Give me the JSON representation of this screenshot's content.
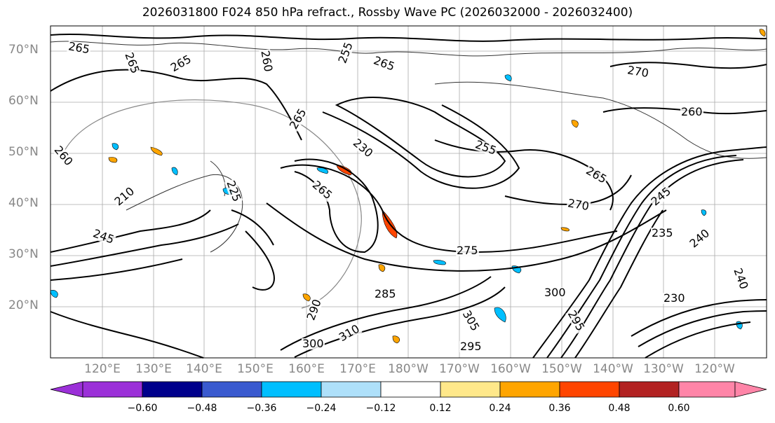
{
  "title": "2026031800 F024 850 hPa refract., Rossby Wave PC (2026032000 - 2026032400)",
  "lat_labels": [
    "70°N",
    "60°N",
    "50°N",
    "40°N",
    "30°N",
    "20°N"
  ],
  "lon_labels": [
    "120°E",
    "130°E",
    "140°E",
    "150°E",
    "160°E",
    "170°E",
    "180°W",
    "170°W",
    "160°W",
    "150°W",
    "140°W",
    "130°W",
    "120°W"
  ],
  "contour_labels": [
    "265",
    "265",
    "265",
    "260",
    "255",
    "265",
    "270",
    "260",
    "260",
    "255",
    "265",
    "265",
    "230",
    "270",
    "265",
    "275",
    "245",
    "235",
    "240",
    "225",
    "210",
    "245",
    "285",
    "300",
    "305",
    "295",
    "290",
    "310",
    "300",
    "295",
    "230",
    "240"
  ],
  "colorbar": {
    "ticks": [
      "−0.60",
      "−0.48",
      "−0.36",
      "−0.24",
      "−0.12",
      "0.12",
      "0.24",
      "0.36",
      "0.48",
      "0.60"
    ],
    "colors": [
      "#9b30d8",
      "#00008b",
      "#3a5acf",
      "#00bfff",
      "#aee0fa",
      "#ffffff",
      "#ffe88a",
      "#ffa500",
      "#ff4500",
      "#b22222",
      "#ff85a8",
      "#ff85a8"
    ]
  }
}
